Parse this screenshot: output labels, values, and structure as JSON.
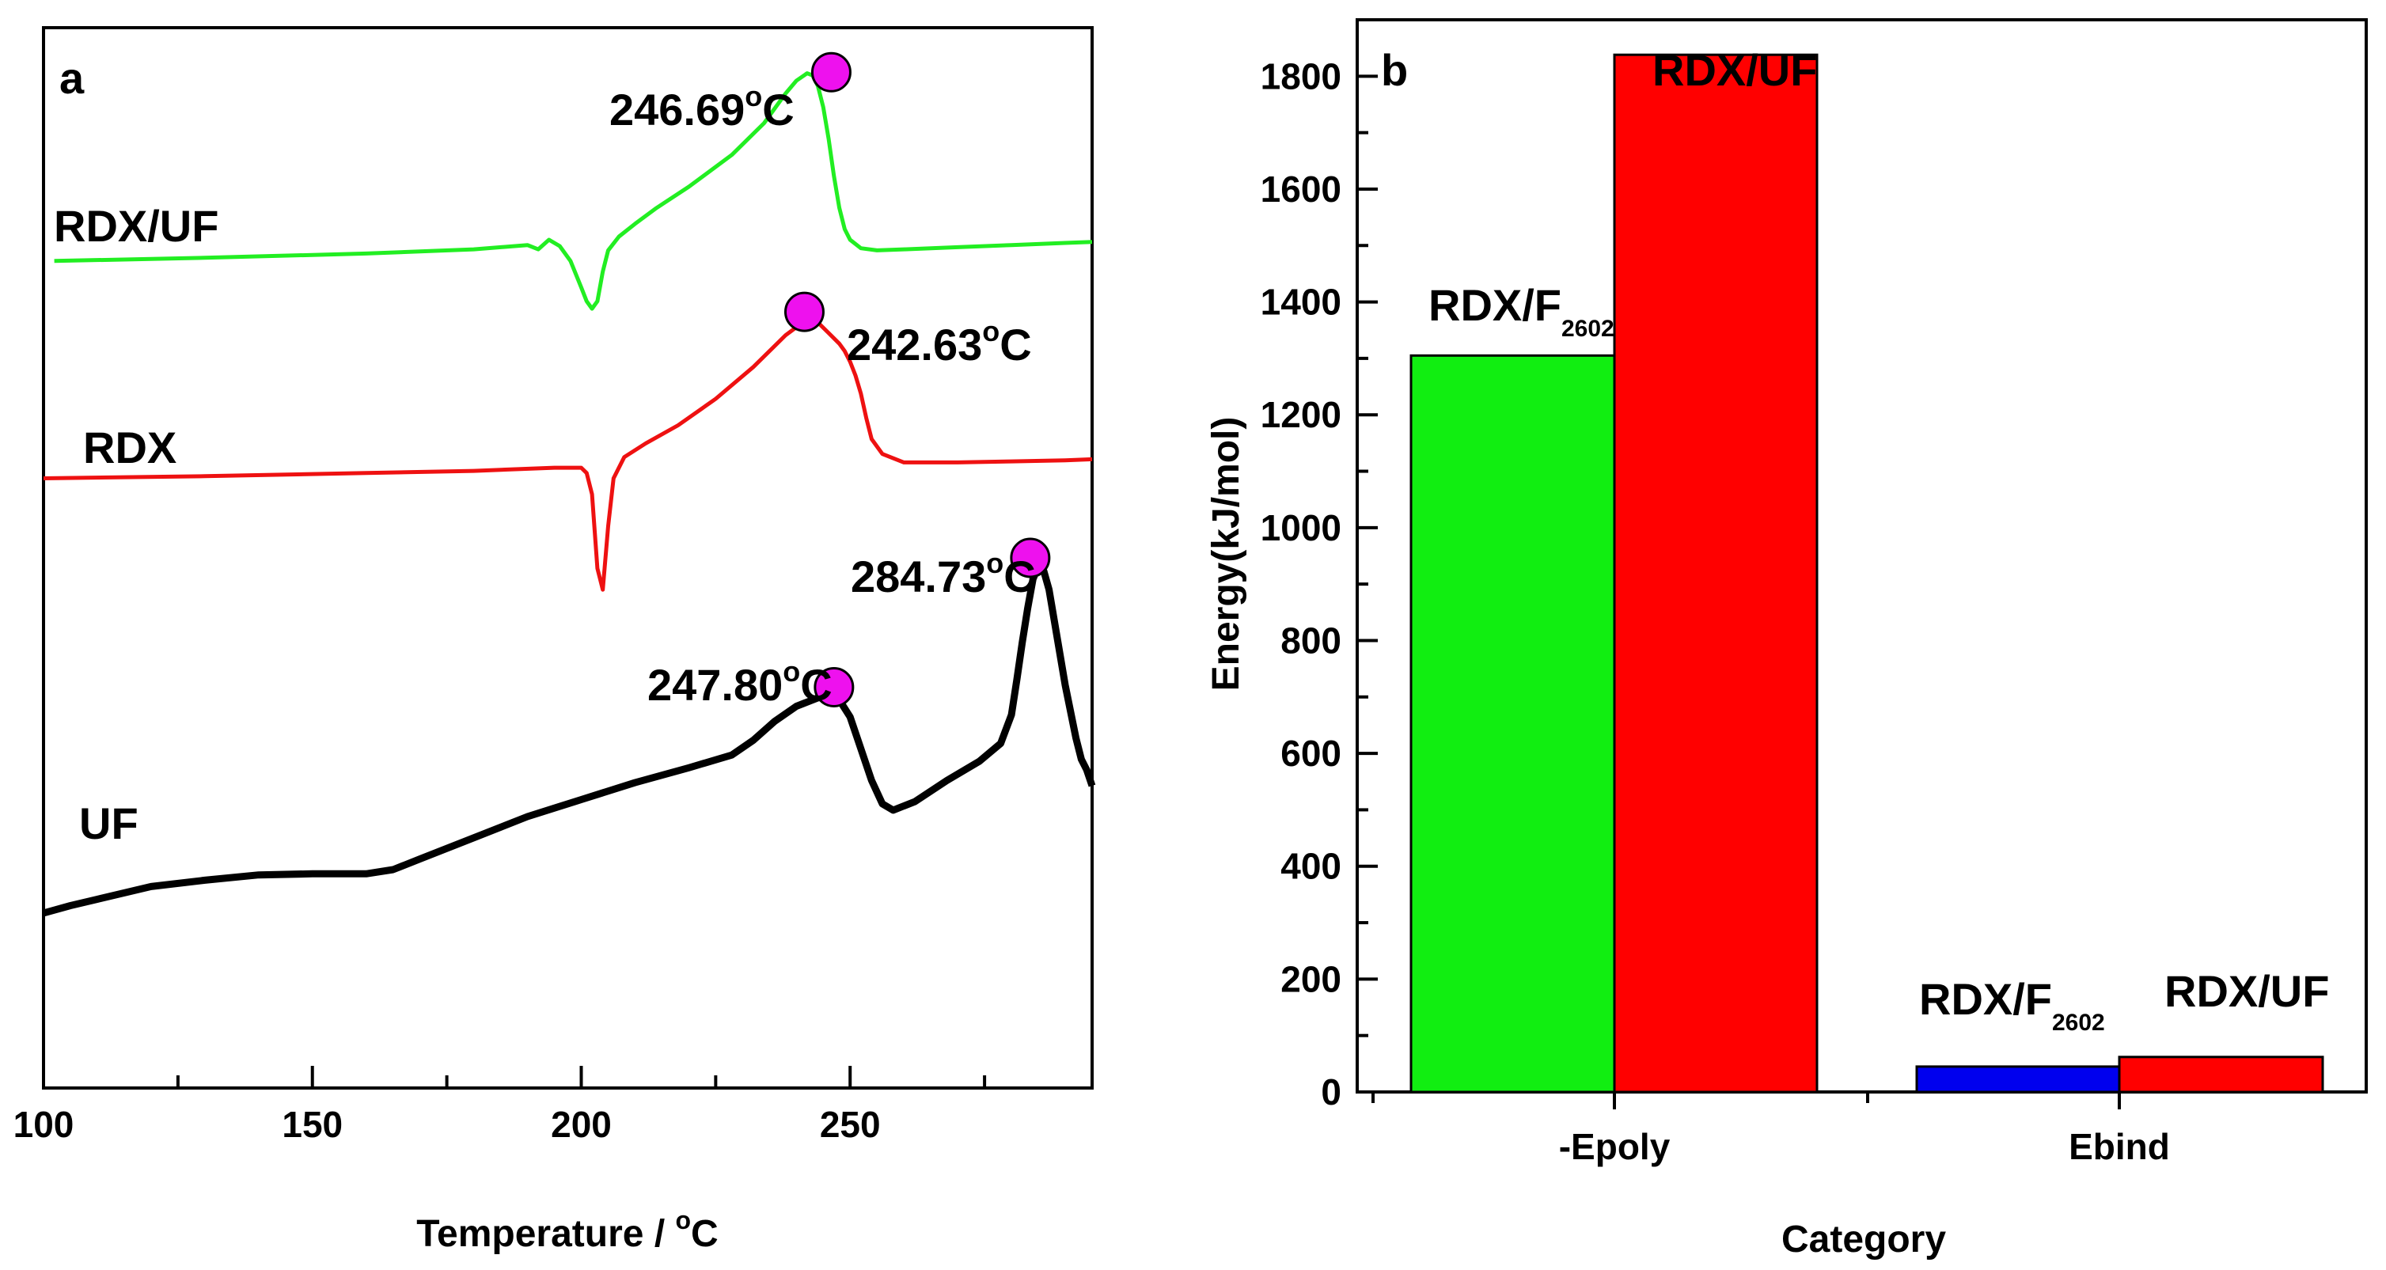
{
  "chart_data": [
    {
      "panel": "a",
      "type": "line",
      "xlabel": "Temperature / °C",
      "xlabel_base": "Temperature / ",
      "xlabel_sup": "o",
      "xlabel_unit": "C",
      "xlim": [
        100,
        295
      ],
      "x_ticks": [
        "100",
        "150",
        "200",
        "250"
      ],
      "series": [
        {
          "name": "RDX/UF",
          "color": "#22ee22",
          "x": [
            102,
            130,
            160,
            180,
            190,
            192,
            194,
            196,
            198,
            200,
            201,
            202,
            203,
            204,
            205,
            207,
            210,
            214,
            220,
            228,
            234,
            238,
            240,
            242,
            243,
            244,
            245,
            246,
            247,
            248,
            249,
            250,
            252,
            255,
            260,
            270,
            280,
            290,
            295
          ],
          "y": [
            0.78,
            0.783,
            0.787,
            0.791,
            0.795,
            0.791,
            0.8,
            0.794,
            0.78,
            0.755,
            0.742,
            0.735,
            0.742,
            0.77,
            0.79,
            0.803,
            0.815,
            0.83,
            0.85,
            0.88,
            0.91,
            0.938,
            0.95,
            0.957,
            0.955,
            0.945,
            0.925,
            0.895,
            0.86,
            0.83,
            0.81,
            0.8,
            0.792,
            0.79,
            0.791,
            0.793,
            0.795,
            0.797,
            0.798
          ]
        },
        {
          "name": "RDX",
          "color": "#ee1111",
          "x": [
            100,
            130,
            160,
            180,
            195,
            200,
            201,
            202,
            203,
            204,
            205,
            206,
            208,
            212,
            218,
            225,
            232,
            238,
            242,
            244,
            246,
            248,
            249,
            250,
            251,
            252,
            253,
            254,
            256,
            260,
            270,
            280,
            290,
            295
          ],
          "y": [
            0.575,
            0.577,
            0.58,
            0.582,
            0.585,
            0.585,
            0.58,
            0.56,
            0.49,
            0.47,
            0.53,
            0.575,
            0.595,
            0.608,
            0.625,
            0.65,
            0.68,
            0.71,
            0.725,
            0.722,
            0.712,
            0.702,
            0.695,
            0.685,
            0.672,
            0.655,
            0.632,
            0.612,
            0.598,
            0.59,
            0.59,
            0.591,
            0.592,
            0.593
          ]
        },
        {
          "name": "UF",
          "color": "#000000",
          "x": [
            100,
            105,
            110,
            120,
            130,
            140,
            150,
            160,
            165,
            170,
            180,
            190,
            200,
            210,
            220,
            228,
            232,
            236,
            240,
            244,
            246,
            248,
            250,
            252,
            254,
            256,
            258,
            262,
            268,
            274,
            278,
            280,
            281,
            282,
            283,
            284,
            285,
            286,
            287,
            288,
            290,
            292,
            293,
            294,
            295
          ],
          "y": [
            0.165,
            0.172,
            0.178,
            0.19,
            0.196,
            0.201,
            0.202,
            0.202,
            0.206,
            0.216,
            0.236,
            0.256,
            0.272,
            0.288,
            0.302,
            0.314,
            0.328,
            0.346,
            0.36,
            0.368,
            0.369,
            0.366,
            0.35,
            0.32,
            0.29,
            0.268,
            0.262,
            0.27,
            0.29,
            0.308,
            0.325,
            0.352,
            0.385,
            0.42,
            0.452,
            0.48,
            0.492,
            0.488,
            0.47,
            0.44,
            0.38,
            0.33,
            0.31,
            0.3,
            0.285
          ]
        }
      ],
      "peaks": [
        {
          "label": "246.69°C",
          "value": "246.69",
          "sup": "o",
          "unit": "C",
          "x": 246.5,
          "y": 0.958
        },
        {
          "label": "242.63°C",
          "value": "242.63",
          "sup": "o",
          "unit": "C",
          "x": 241.5,
          "y": 0.732
        },
        {
          "label": "247.80°C",
          "value": "247.80",
          "sup": "o",
          "unit": "C",
          "x": 247,
          "y": 0.378
        },
        {
          "label": "284.73°C",
          "value": "284.73",
          "sup": "o",
          "unit": "C",
          "x": 283.5,
          "y": 0.5
        }
      ],
      "marker_color": "#ee11ee"
    },
    {
      "panel": "b",
      "type": "bar",
      "xlabel": "Category",
      "ylabel": "Energy(kJ/mol)",
      "ylim": [
        0,
        1900
      ],
      "y_ticks": [
        "0",
        "200",
        "400",
        "600",
        "800",
        "1000",
        "1200",
        "1400",
        "1600",
        "1800"
      ],
      "categories": [
        "-Epoly",
        "Ebind"
      ],
      "bars": [
        {
          "category": "-Epoly",
          "label": "RDX/F2602",
          "label_base": "RDX/F",
          "label_sub": "2602",
          "value": 1305,
          "color": "#11ee11"
        },
        {
          "category": "-Epoly",
          "label": "RDX/UF",
          "value": 1838,
          "color": "#ff0000"
        },
        {
          "category": "Ebind",
          "label": "RDX/F2602",
          "label_base": "RDX/F",
          "label_sub": "2602",
          "value": 45,
          "color": "#0000ee"
        },
        {
          "category": "Ebind",
          "label": "RDX/UF",
          "value": 62,
          "color": "#ff0000"
        }
      ]
    }
  ]
}
